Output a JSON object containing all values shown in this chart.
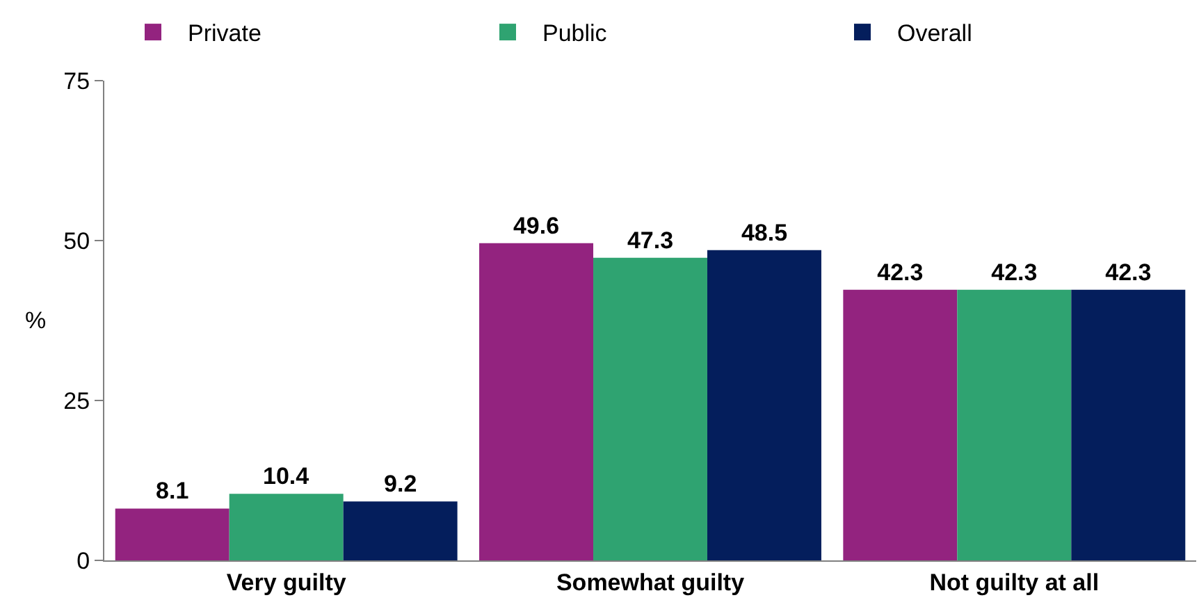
{
  "chart_data": {
    "type": "bar",
    "ylabel": "%",
    "categories": [
      "Very guilty",
      "Somewhat guilty",
      "Not guilty at all"
    ],
    "series": [
      {
        "name": "Private",
        "color": "#93237f",
        "values": [
          8.1,
          49.6,
          42.3
        ]
      },
      {
        "name": "Public",
        "color": "#2fa371",
        "values": [
          10.4,
          47.3,
          42.3
        ]
      },
      {
        "name": "Overall",
        "color": "#041e5c",
        "values": [
          9.2,
          48.5,
          42.3
        ]
      }
    ],
    "ylim": [
      0,
      75
    ],
    "yticks": [
      0,
      25,
      50,
      75
    ],
    "data_labels": true,
    "legend": "top"
  }
}
